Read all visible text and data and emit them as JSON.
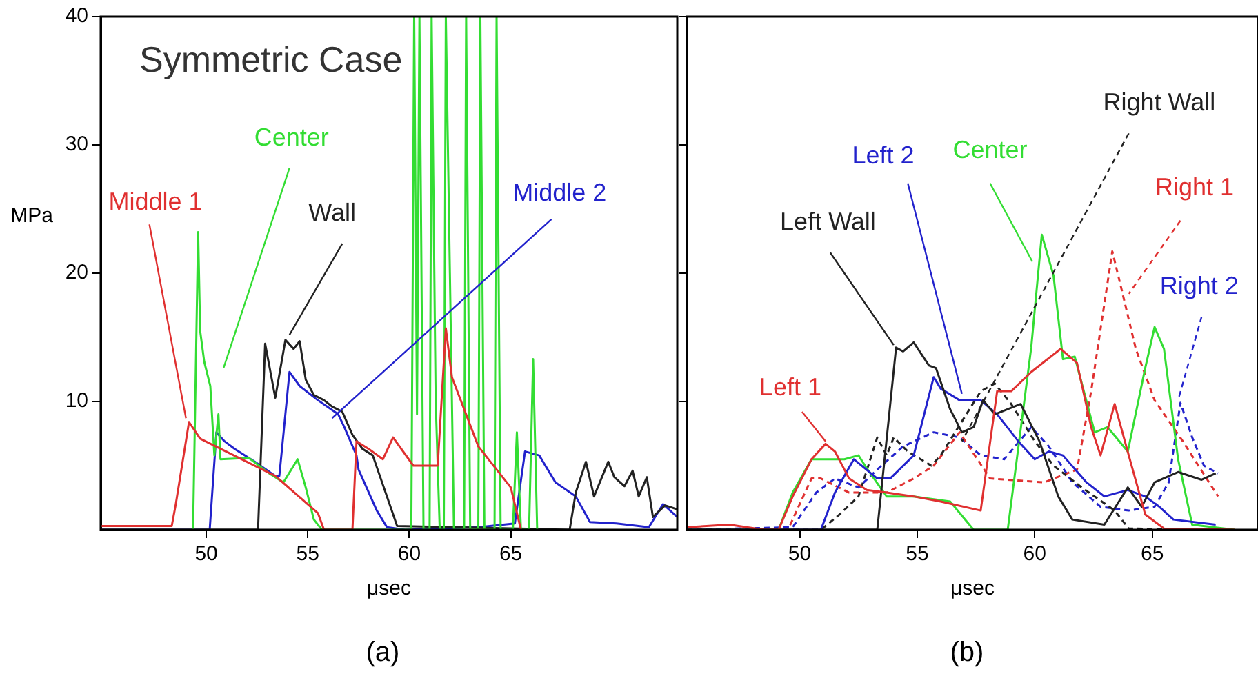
{
  "chart_data": [
    {
      "type": "line",
      "title": "Symmetric Case",
      "xlabel": "μsec",
      "ylabel": "MPa",
      "annotations": [
        "(a)"
      ],
      "xlim": [
        44.8,
        73.2
      ],
      "xticks": [
        50,
        55,
        60,
        65
      ],
      "ylim": [
        0,
        40
      ],
      "yticks": [
        10,
        20,
        30,
        40
      ],
      "grid": false,
      "legend": false,
      "marker": "none",
      "series": [
        {
          "name": "Middle 1",
          "color": "#e03030",
          "x": [
            44.8,
            48.3,
            48.5,
            49.15,
            49.7,
            53.4,
            55.5,
            55.8,
            57.2,
            57.4,
            58.0,
            58.7,
            59.2,
            60.2,
            61.4,
            61.8,
            62.1,
            63.4,
            65.0,
            65.5
          ],
          "values": [
            0.3,
            0.3,
            2,
            8.4,
            7.1,
            4.2,
            1.3,
            0,
            0,
            6.9,
            6.3,
            5.5,
            7.2,
            5.0,
            5.0,
            15.7,
            11.9,
            6.5,
            3.3,
            0
          ]
        },
        {
          "name": "Center",
          "color": "#33dd33",
          "x": [
            49.35,
            49.6,
            49.7,
            49.9,
            50.2,
            50.4,
            50.6,
            50.7,
            52.1,
            53.1,
            53.8,
            54.5,
            54.9,
            55.3,
            55.7,
            60.1,
            60.24,
            60.38,
            60.5,
            60.7,
            61.0,
            61.1,
            61.3,
            61.5,
            61.7,
            61.8,
            62.0,
            62.2,
            62.7,
            62.8,
            63.0,
            63.4,
            63.5,
            63.7,
            64.2,
            64.3,
            64.5,
            65.1,
            65.3,
            65.5,
            65.9,
            66.1,
            66.3
          ],
          "values": [
            0,
            23.2,
            15.5,
            13.1,
            11.2,
            5.8,
            9,
            5.5,
            5.6,
            4.4,
            3.7,
            5.5,
            3.3,
            0.8,
            0,
            0,
            40,
            9,
            40,
            0,
            0,
            40,
            10,
            0,
            0,
            40,
            20,
            0,
            0,
            40,
            0,
            0,
            40,
            0,
            0,
            40,
            0,
            0,
            7.6,
            0,
            0,
            13.3,
            0
          ]
        },
        {
          "name": "Wall",
          "color": "#222222",
          "x": [
            44.8,
            52.55,
            52.9,
            53.4,
            53.9,
            54.3,
            54.6,
            54.9,
            55.3,
            55.8,
            56.2,
            56.7,
            57.2,
            57.7,
            58.2,
            58.9,
            59.4,
            67.9,
            68.2,
            68.7,
            69.1,
            69.8,
            70.1,
            70.6,
            71.0,
            71.3,
            71.7,
            72.0,
            72.6,
            73.2
          ],
          "values": [
            0,
            0,
            14.5,
            10.3,
            14.8,
            14.1,
            14.7,
            11.7,
            10.5,
            10.1,
            9.6,
            9.2,
            7.4,
            6.3,
            5.8,
            2.6,
            0.3,
            0,
            2.9,
            5.3,
            2.6,
            5.3,
            4.1,
            3.4,
            4.6,
            2.6,
            4.1,
            1.0,
            1.9,
            1.6
          ]
        },
        {
          "name": "Middle 2",
          "color": "#2222cc",
          "x": [
            44.8,
            50.17,
            50.5,
            50.9,
            51.4,
            52.4,
            53.4,
            53.6,
            54.1,
            54.6,
            55.5,
            56.5,
            56.8,
            57.4,
            57.5,
            58.4,
            58.9,
            59.8,
            63.4,
            65.2,
            65.7,
            66.4,
            67.2,
            68.2,
            68.9,
            70.2,
            71.8,
            72.5,
            73.2
          ],
          "values": [
            0,
            0,
            7.6,
            6.9,
            6.3,
            5.3,
            4.2,
            4.2,
            12.3,
            11.2,
            10.1,
            9.0,
            8.0,
            5.8,
            4.7,
            1.5,
            0.2,
            0,
            0.2,
            0.5,
            6.1,
            5.8,
            3.7,
            2.6,
            0.6,
            0.5,
            0.2,
            2.0,
            1.0
          ]
        }
      ]
    },
    {
      "type": "line",
      "xlabel": "μsec",
      "annotations": [
        "(b)"
      ],
      "xlim": [
        45.2,
        69.5
      ],
      "xticks": [
        50,
        55,
        60,
        65
      ],
      "ylim": [
        0,
        40
      ],
      "yticks": [
        10,
        20,
        30,
        40
      ],
      "tick_labels": "x",
      "grid": false,
      "legend": false,
      "marker": "none",
      "series": [
        {
          "name": "Left 1",
          "color": "#e03030",
          "x": [
            45.2,
            47,
            48.5,
            49.1,
            49.7,
            50.5,
            51.1,
            51.5,
            52.1,
            52.85,
            53.7,
            54.85,
            56.0,
            57.7,
            58.4,
            59.0,
            59.85,
            61.1,
            61.8,
            62.4,
            62.8,
            63.4,
            64.0,
            64.7,
            65.5,
            68.5
          ],
          "values": [
            0.2,
            0.4,
            0,
            0,
            2.6,
            5.5,
            6.7,
            6.1,
            4.0,
            3.1,
            2.9,
            2.6,
            2.2,
            1.5,
            10.8,
            10.8,
            12.3,
            14.1,
            13.0,
            8.0,
            5.8,
            9.8,
            5.8,
            1.2,
            0.1,
            0
          ]
        },
        {
          "name": "Left Wall",
          "color": "#222222",
          "x": [
            45.2,
            53.3,
            54.1,
            54.4,
            54.85,
            55.5,
            55.8,
            56.4,
            56.9,
            57.4,
            57.8,
            58.3,
            59.4,
            60.2,
            61.0,
            61.6,
            62.96,
            63.96,
            64.55,
            65.1,
            66.1,
            67.1,
            67.7
          ],
          "values": [
            0,
            0,
            14.2,
            13.9,
            14.6,
            12.8,
            12.6,
            9.4,
            7.6,
            8.0,
            10.1,
            9.0,
            9.8,
            6.9,
            2.6,
            0.8,
            0.4,
            3.3,
            1.8,
            3.7,
            4.5,
            3.9,
            4.4
          ]
        },
        {
          "name": "Left 2",
          "color": "#2222cc",
          "x": [
            45.2,
            50.9,
            51.5,
            52.3,
            53.3,
            53.85,
            54.85,
            55.7,
            56.0,
            56.8,
            57.7,
            58.4,
            59.3,
            60.0,
            60.6,
            61.2,
            62.2,
            62.96,
            63.96,
            64.7,
            65.3,
            65.9,
            67.7
          ],
          "values": [
            0,
            0,
            2.9,
            5.5,
            4.0,
            4.0,
            5.8,
            11.9,
            11.0,
            10.1,
            10.1,
            9.0,
            6.9,
            5.5,
            6.1,
            5.8,
            3.7,
            2.6,
            3.1,
            2.6,
            1.8,
            0.8,
            0.4
          ]
        },
        {
          "name": "Center",
          "color": "#33dd33",
          "x": [
            45.2,
            49.1,
            49.7,
            50.5,
            51.3,
            51.9,
            52.5,
            52.85,
            53.7,
            54.85,
            56.4,
            57.4,
            58.85,
            59.85,
            60.3,
            60.8,
            61.2,
            61.7,
            62.55,
            63.1,
            63.96,
            64.7,
            65.1,
            65.5,
            66.1,
            66.7,
            68.5
          ],
          "values": [
            0,
            0,
            2.9,
            5.5,
            5.5,
            5.5,
            5.8,
            4.8,
            2.6,
            2.6,
            2.2,
            0,
            0,
            14.2,
            23.0,
            19.8,
            13.3,
            13.5,
            7.6,
            8.0,
            6.1,
            12.6,
            15.8,
            14.1,
            5.5,
            0.4,
            0
          ]
        },
        {
          "name": "Right Wall",
          "color": "#222222",
          "line_style": "dashed",
          "x": [
            45.2,
            50.9,
            51.7,
            52.5,
            53.3,
            53.7,
            54.0,
            54.6,
            55.6,
            56.0,
            57.7,
            58.3,
            59.0,
            60.0,
            60.8,
            62.0,
            63.4,
            64.0,
            67.7
          ],
          "values": [
            0,
            0,
            1.2,
            2.6,
            7.2,
            5.8,
            7.2,
            6.1,
            5.0,
            5.8,
            10.8,
            11.4,
            9.8,
            6.9,
            5.0,
            3.3,
            1.5,
            0.1,
            0
          ]
        },
        {
          "name": "Right 1",
          "color": "#e03030",
          "line_style": "dashed",
          "x": [
            45.2,
            49.5,
            49.7,
            50.5,
            50.9,
            52.1,
            53.7,
            54.85,
            55.7,
            56.8,
            58.1,
            60.4,
            61.8,
            62.4,
            63.3,
            63.7,
            64.3,
            65.1,
            66.3,
            67.8
          ],
          "values": [
            0,
            0,
            0.8,
            4.0,
            4.0,
            2.9,
            2.9,
            4.0,
            5.0,
            7.6,
            4.0,
            3.7,
            4.7,
            10.8,
            21.7,
            18.7,
            14.1,
            10.1,
            6.9,
            2.6
          ]
        },
        {
          "name": "Right 2",
          "color": "#2222cc",
          "line_style": "dashed",
          "x": [
            45.2,
            49.7,
            50.7,
            51.5,
            52.5,
            53.3,
            54.4,
            55.7,
            56.8,
            57.7,
            58.7,
            59.85,
            60.6,
            61.6,
            62.8,
            64.0,
            65.1,
            65.7,
            66.2,
            66.7,
            67.2,
            67.8
          ],
          "values": [
            0,
            0.2,
            2.9,
            4.0,
            3.3,
            4.7,
            6.5,
            7.6,
            7.2,
            5.8,
            5.5,
            8.0,
            6.5,
            3.7,
            1.8,
            1.5,
            1.8,
            3.7,
            9.9,
            7.2,
            5.0,
            4.4
          ]
        }
      ]
    }
  ]
}
